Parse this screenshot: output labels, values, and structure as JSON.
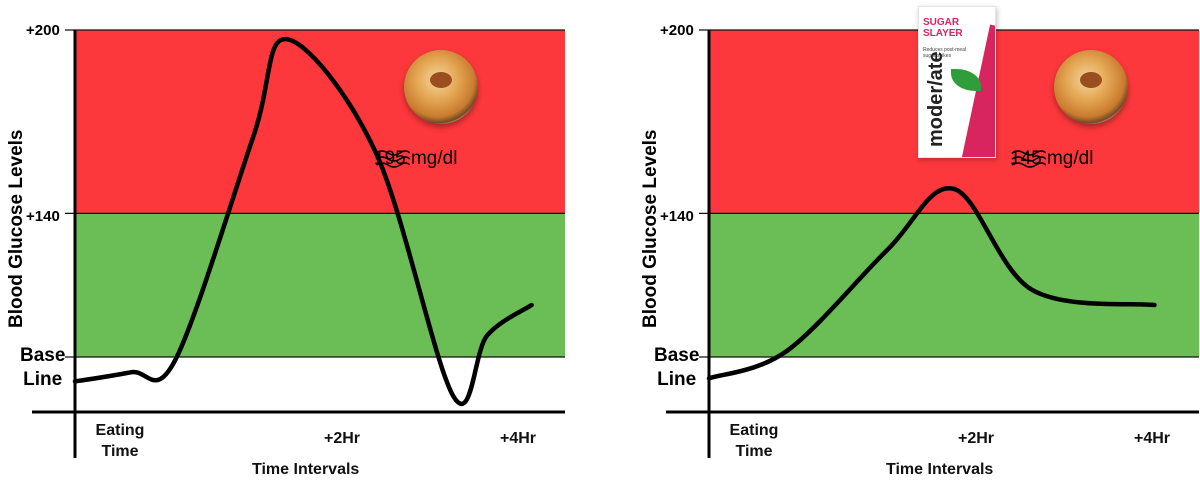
{
  "chart_data": [
    {
      "type": "line",
      "ylabel": "Blood Glucose Levels",
      "xlabel": "Time Intervals",
      "y_ticks": [
        "+200",
        "+140"
      ],
      "baseline_label_line1": "Base",
      "baseline_label_line2": "Line",
      "x_ticks": [
        {
          "label_line1": "Eating",
          "label_line2": "Time",
          "x": 0
        },
        {
          "label_line1": "+2Hr",
          "label_line2": "",
          "x": 2
        },
        {
          "label_line1": "+4Hr",
          "label_line2": "",
          "x": 4
        }
      ],
      "zones": [
        {
          "name": "high",
          "from": 140,
          "to": 200,
          "color": "#fc383c"
        },
        {
          "name": "normal",
          "from": 93,
          "to": 140,
          "color": "#6bbd55"
        }
      ],
      "ylim": [
        75,
        200
      ],
      "xlim": [
        -0.3,
        4.1
      ],
      "annotation": "195 mg/dl",
      "series": [
        {
          "color": "#000000",
          "x": [
            -0.3,
            0.2,
            0.6,
            1.3,
            1.6,
            2.4,
            3.1,
            3.4,
            3.8
          ],
          "y": [
            85,
            88,
            92,
            165,
            197,
            160,
            80,
            100,
            110
          ]
        }
      ],
      "icons": [
        "biryani-plate-icon",
        "heat-waves-icon"
      ]
    },
    {
      "type": "line",
      "ylabel": "Blood Glucose Levels",
      "xlabel": "Time Intervals",
      "y_ticks": [
        "+200",
        "+140"
      ],
      "baseline_label_line1": "Base",
      "baseline_label_line2": "Line",
      "x_ticks": [
        {
          "label_line1": "Eating",
          "label_line2": "Time",
          "x": 0
        },
        {
          "label_line1": "+2Hr",
          "label_line2": "",
          "x": 2
        },
        {
          "label_line1": "+4Hr",
          "label_line2": "",
          "x": 4
        }
      ],
      "zones": [
        {
          "name": "high",
          "from": 140,
          "to": 200,
          "color": "#fc383c"
        },
        {
          "name": "normal",
          "from": 93,
          "to": 140,
          "color": "#6bbd55"
        }
      ],
      "ylim": [
        75,
        200
      ],
      "xlim": [
        -0.3,
        4.1
      ],
      "annotation": "145 mg/dl",
      "series": [
        {
          "color": "#000000",
          "x": [
            -0.3,
            0.4,
            1.3,
            1.9,
            2.6,
            3.7
          ],
          "y": [
            86,
            95,
            128,
            148,
            115,
            110
          ]
        }
      ],
      "icons": [
        "sugar-slayer-pack-icon",
        "biryani-plate-icon",
        "heat-waves-icon"
      ],
      "product": {
        "line1": "SUGAR",
        "line2": "SLAYER",
        "tagline": "Reduces post-meal sugar spikes",
        "brand": "moder/ate"
      }
    }
  ]
}
